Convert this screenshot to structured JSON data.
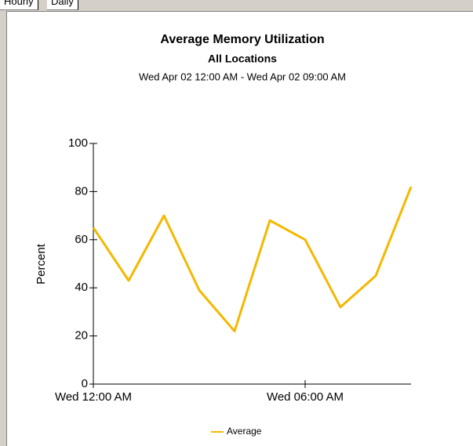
{
  "tabs": [
    "Hourly",
    "Daily"
  ],
  "chart_data": {
    "type": "line",
    "title": "Average Memory Utilization",
    "subtitle": "All Locations",
    "date_range": "Wed Apr 02 12:00 AM - Wed Apr 02 09:00 AM",
    "y_label": "Percent",
    "x": [
      0,
      1,
      2,
      3,
      4,
      5,
      6,
      7,
      8,
      9
    ],
    "xlim": [
      0,
      9
    ],
    "xticks": [
      {
        "value": 0,
        "label": "Wed 12:00 AM"
      },
      {
        "value": 6,
        "label": "Wed 06:00 AM"
      }
    ],
    "ylim": [
      0,
      100
    ],
    "yticks": [
      0,
      20,
      40,
      60,
      80,
      100
    ],
    "series": [
      {
        "name": "Average",
        "color": "#f5b800",
        "values": [
          65,
          43,
          70,
          39,
          22,
          68,
          60,
          32,
          45,
          82
        ]
      }
    ],
    "grid": false
  }
}
